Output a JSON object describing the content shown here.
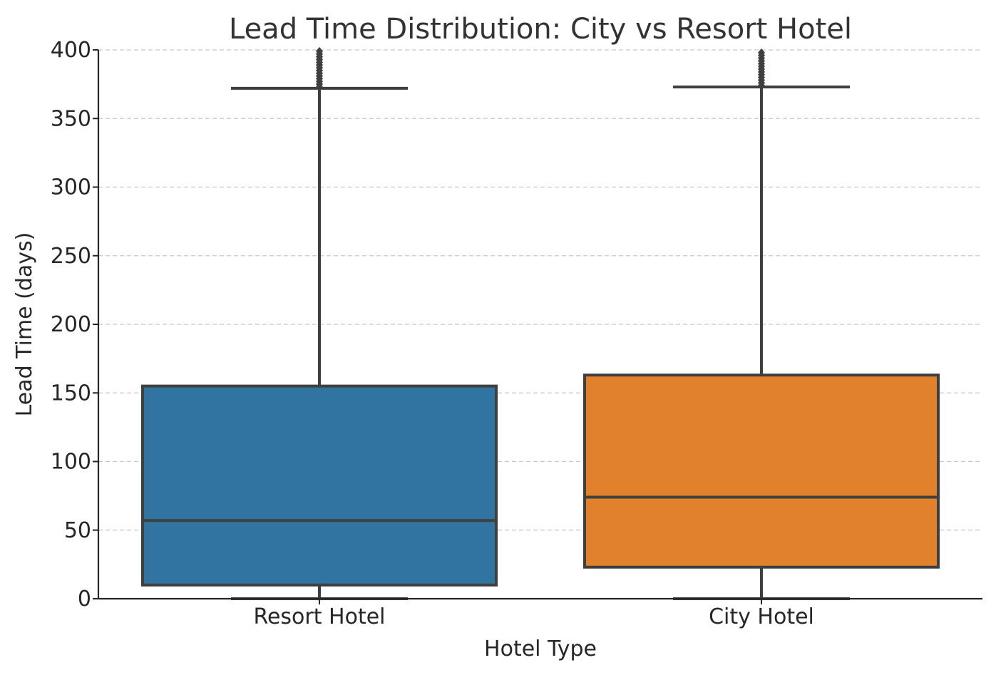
{
  "chart_data": {
    "type": "box",
    "title": "Lead Time Distribution: City vs Resort Hotel",
    "xlabel": "Hotel Type",
    "ylabel": "Lead Time (days)",
    "ylim": [
      0,
      400
    ],
    "yticks": [
      0,
      50,
      100,
      150,
      200,
      250,
      300,
      350,
      400
    ],
    "grid": "y-dashed",
    "categories": [
      "Resort Hotel",
      "City Hotel"
    ],
    "boxes": [
      {
        "category": "Resort Hotel",
        "color": "#3274a1",
        "whisker_low": 0,
        "q1": 10,
        "median": 57,
        "q3": 155,
        "whisker_high": 372,
        "outliers": [
          373,
          375,
          377,
          379,
          381,
          383,
          385,
          387,
          389,
          391,
          393,
          395,
          397,
          399
        ]
      },
      {
        "category": "City Hotel",
        "color": "#e1812c",
        "whisker_low": 0,
        "q1": 23,
        "median": 74,
        "q3": 163,
        "whisker_high": 373,
        "outliers": [
          374,
          376,
          378,
          380,
          382,
          384,
          386,
          388,
          390,
          392,
          394,
          396,
          398
        ]
      }
    ]
  }
}
